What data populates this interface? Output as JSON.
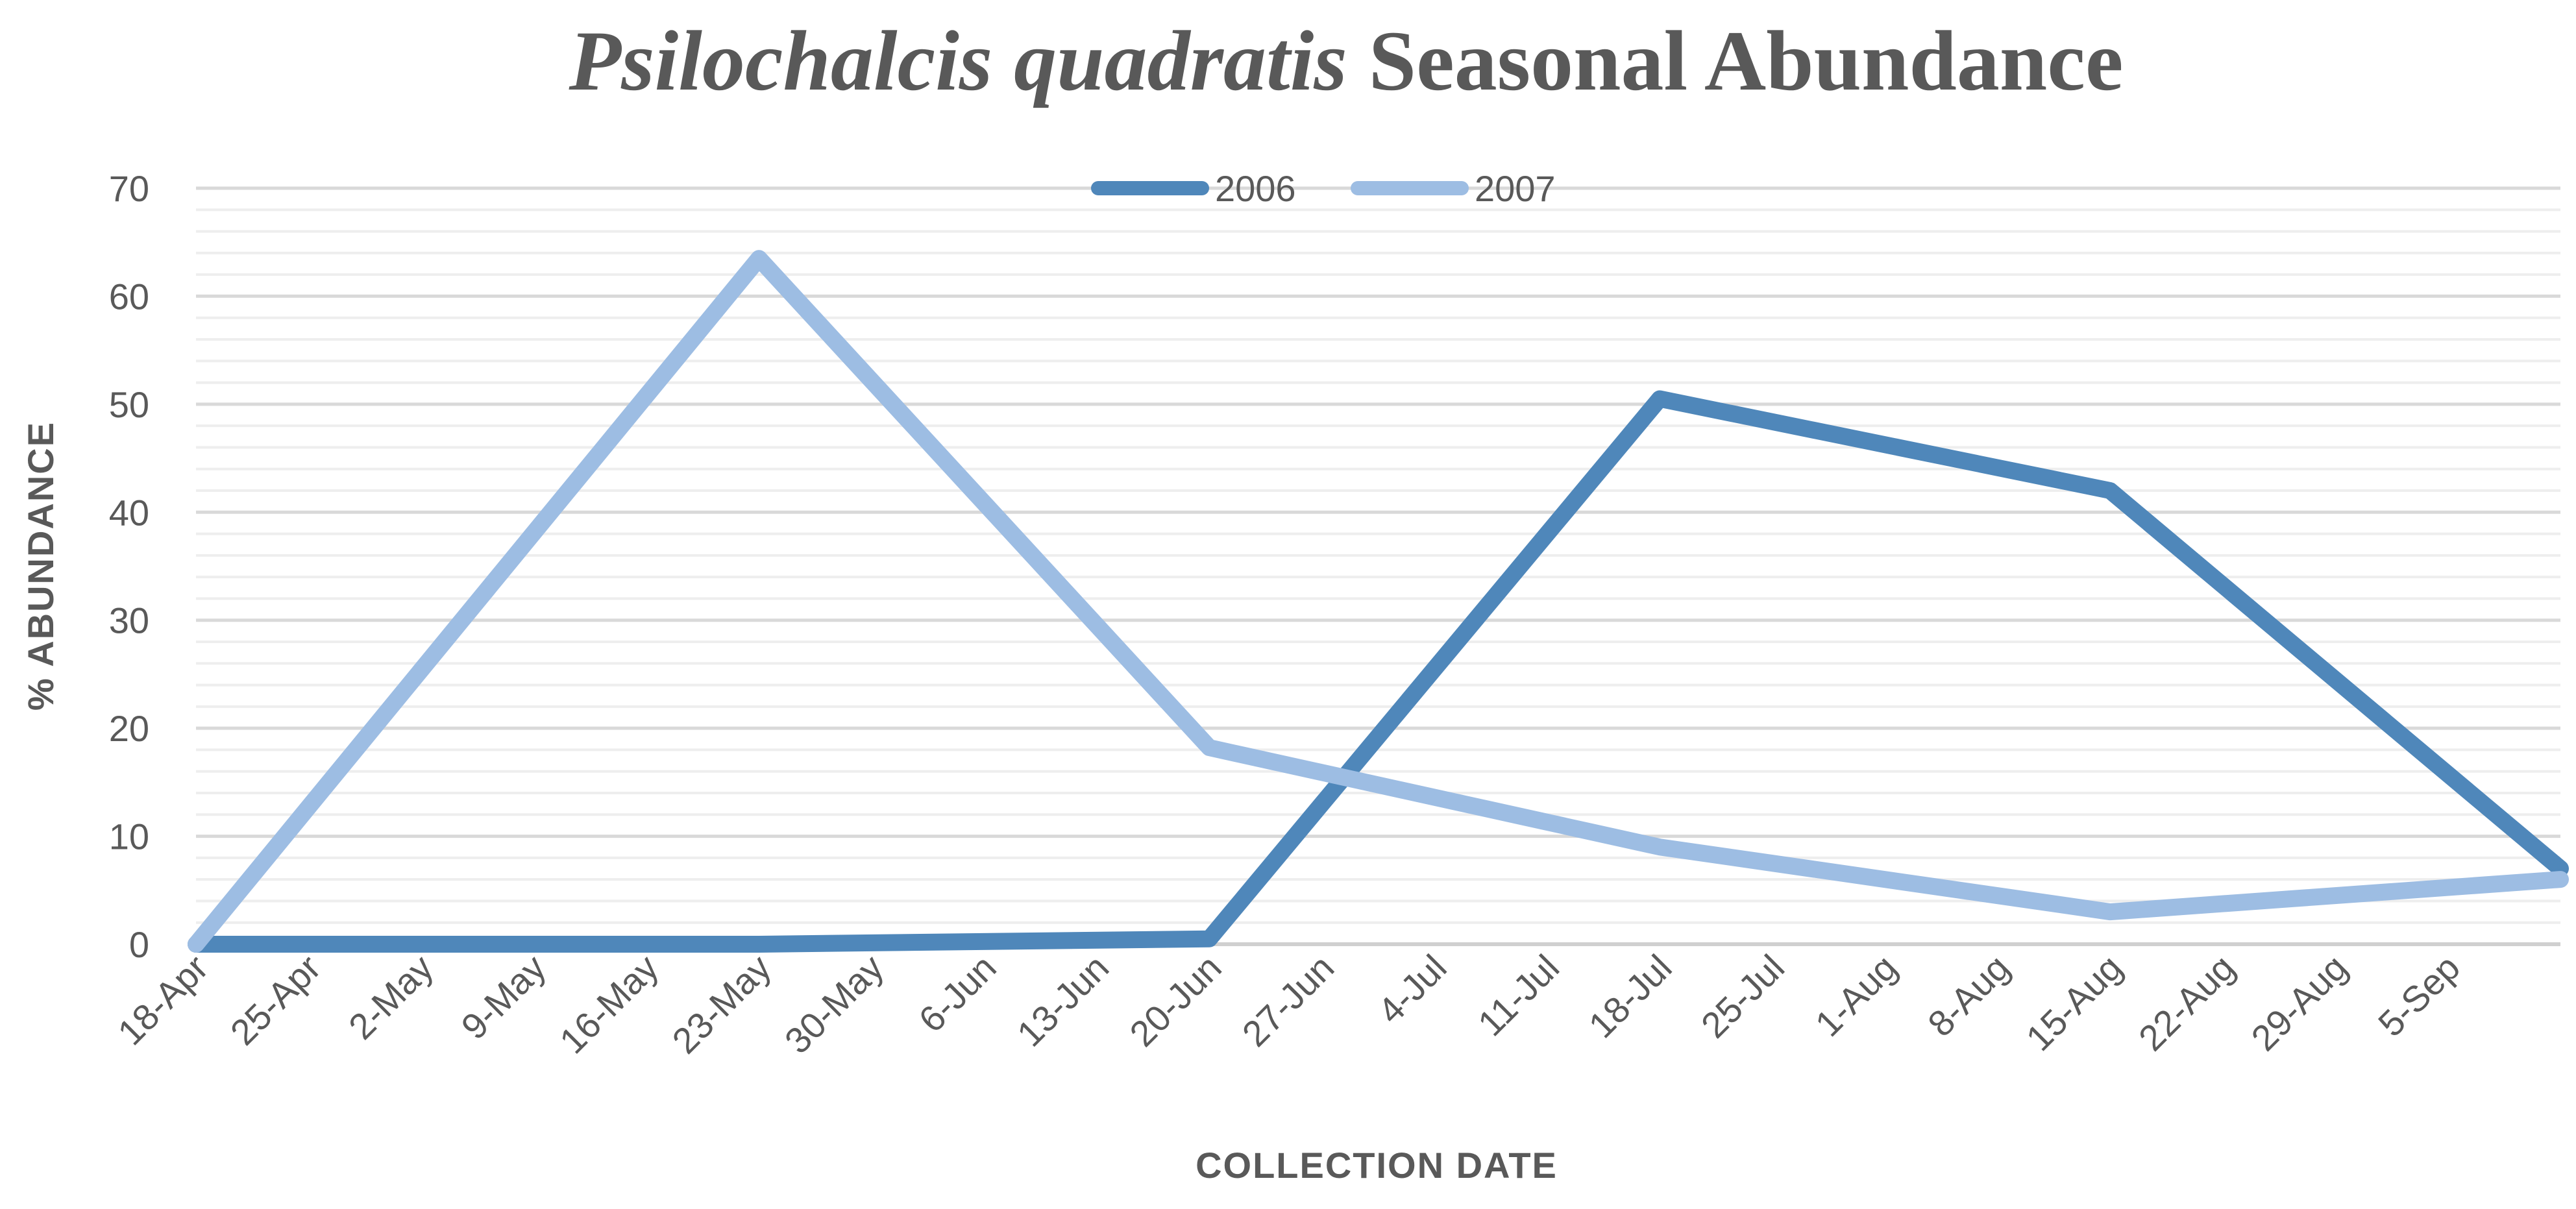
{
  "chart_data": {
    "type": "line",
    "title": {
      "italic": "Psilochalcis quadratis",
      "regular": " Seasonal Abundance"
    },
    "xlabel": "COLLECTION DATE",
    "ylabel": "% ABUNDANCE",
    "ylim": [
      0,
      70
    ],
    "y_ticks": [
      0,
      10,
      20,
      30,
      40,
      50,
      60,
      70
    ],
    "minor_grid_step": 2,
    "grid": true,
    "legend_position": "top-center",
    "x_categories": [
      "18-Apr",
      "25-Apr",
      "2-May",
      "9-May",
      "16-May",
      "23-May",
      "30-May",
      "6-Jun",
      "13-Jun",
      "20-Jun",
      "27-Jun",
      "4-Jul",
      "11-Jul",
      "18-Jul",
      "25-Jul",
      "1-Aug",
      "8-Aug",
      "15-Aug",
      "22-Aug",
      "29-Aug",
      "5-Sep"
    ],
    "x_max_index": 21,
    "series": [
      {
        "name": "2006",
        "color": "#4F87BA",
        "points": [
          {
            "x": 0,
            "y": 0
          },
          {
            "x": 5,
            "y": 0
          },
          {
            "x": 9,
            "y": 0.5
          },
          {
            "x": 13,
            "y": 50.5
          },
          {
            "x": 17,
            "y": 42
          },
          {
            "x": 21,
            "y": 7
          }
        ]
      },
      {
        "name": "2007",
        "color": "#9DBDE3",
        "points": [
          {
            "x": 0,
            "y": 0
          },
          {
            "x": 5,
            "y": 63.5
          },
          {
            "x": 9,
            "y": 18.2
          },
          {
            "x": 13,
            "y": 9
          },
          {
            "x": 17,
            "y": 3
          },
          {
            "x": 21,
            "y": 6
          }
        ]
      }
    ]
  }
}
